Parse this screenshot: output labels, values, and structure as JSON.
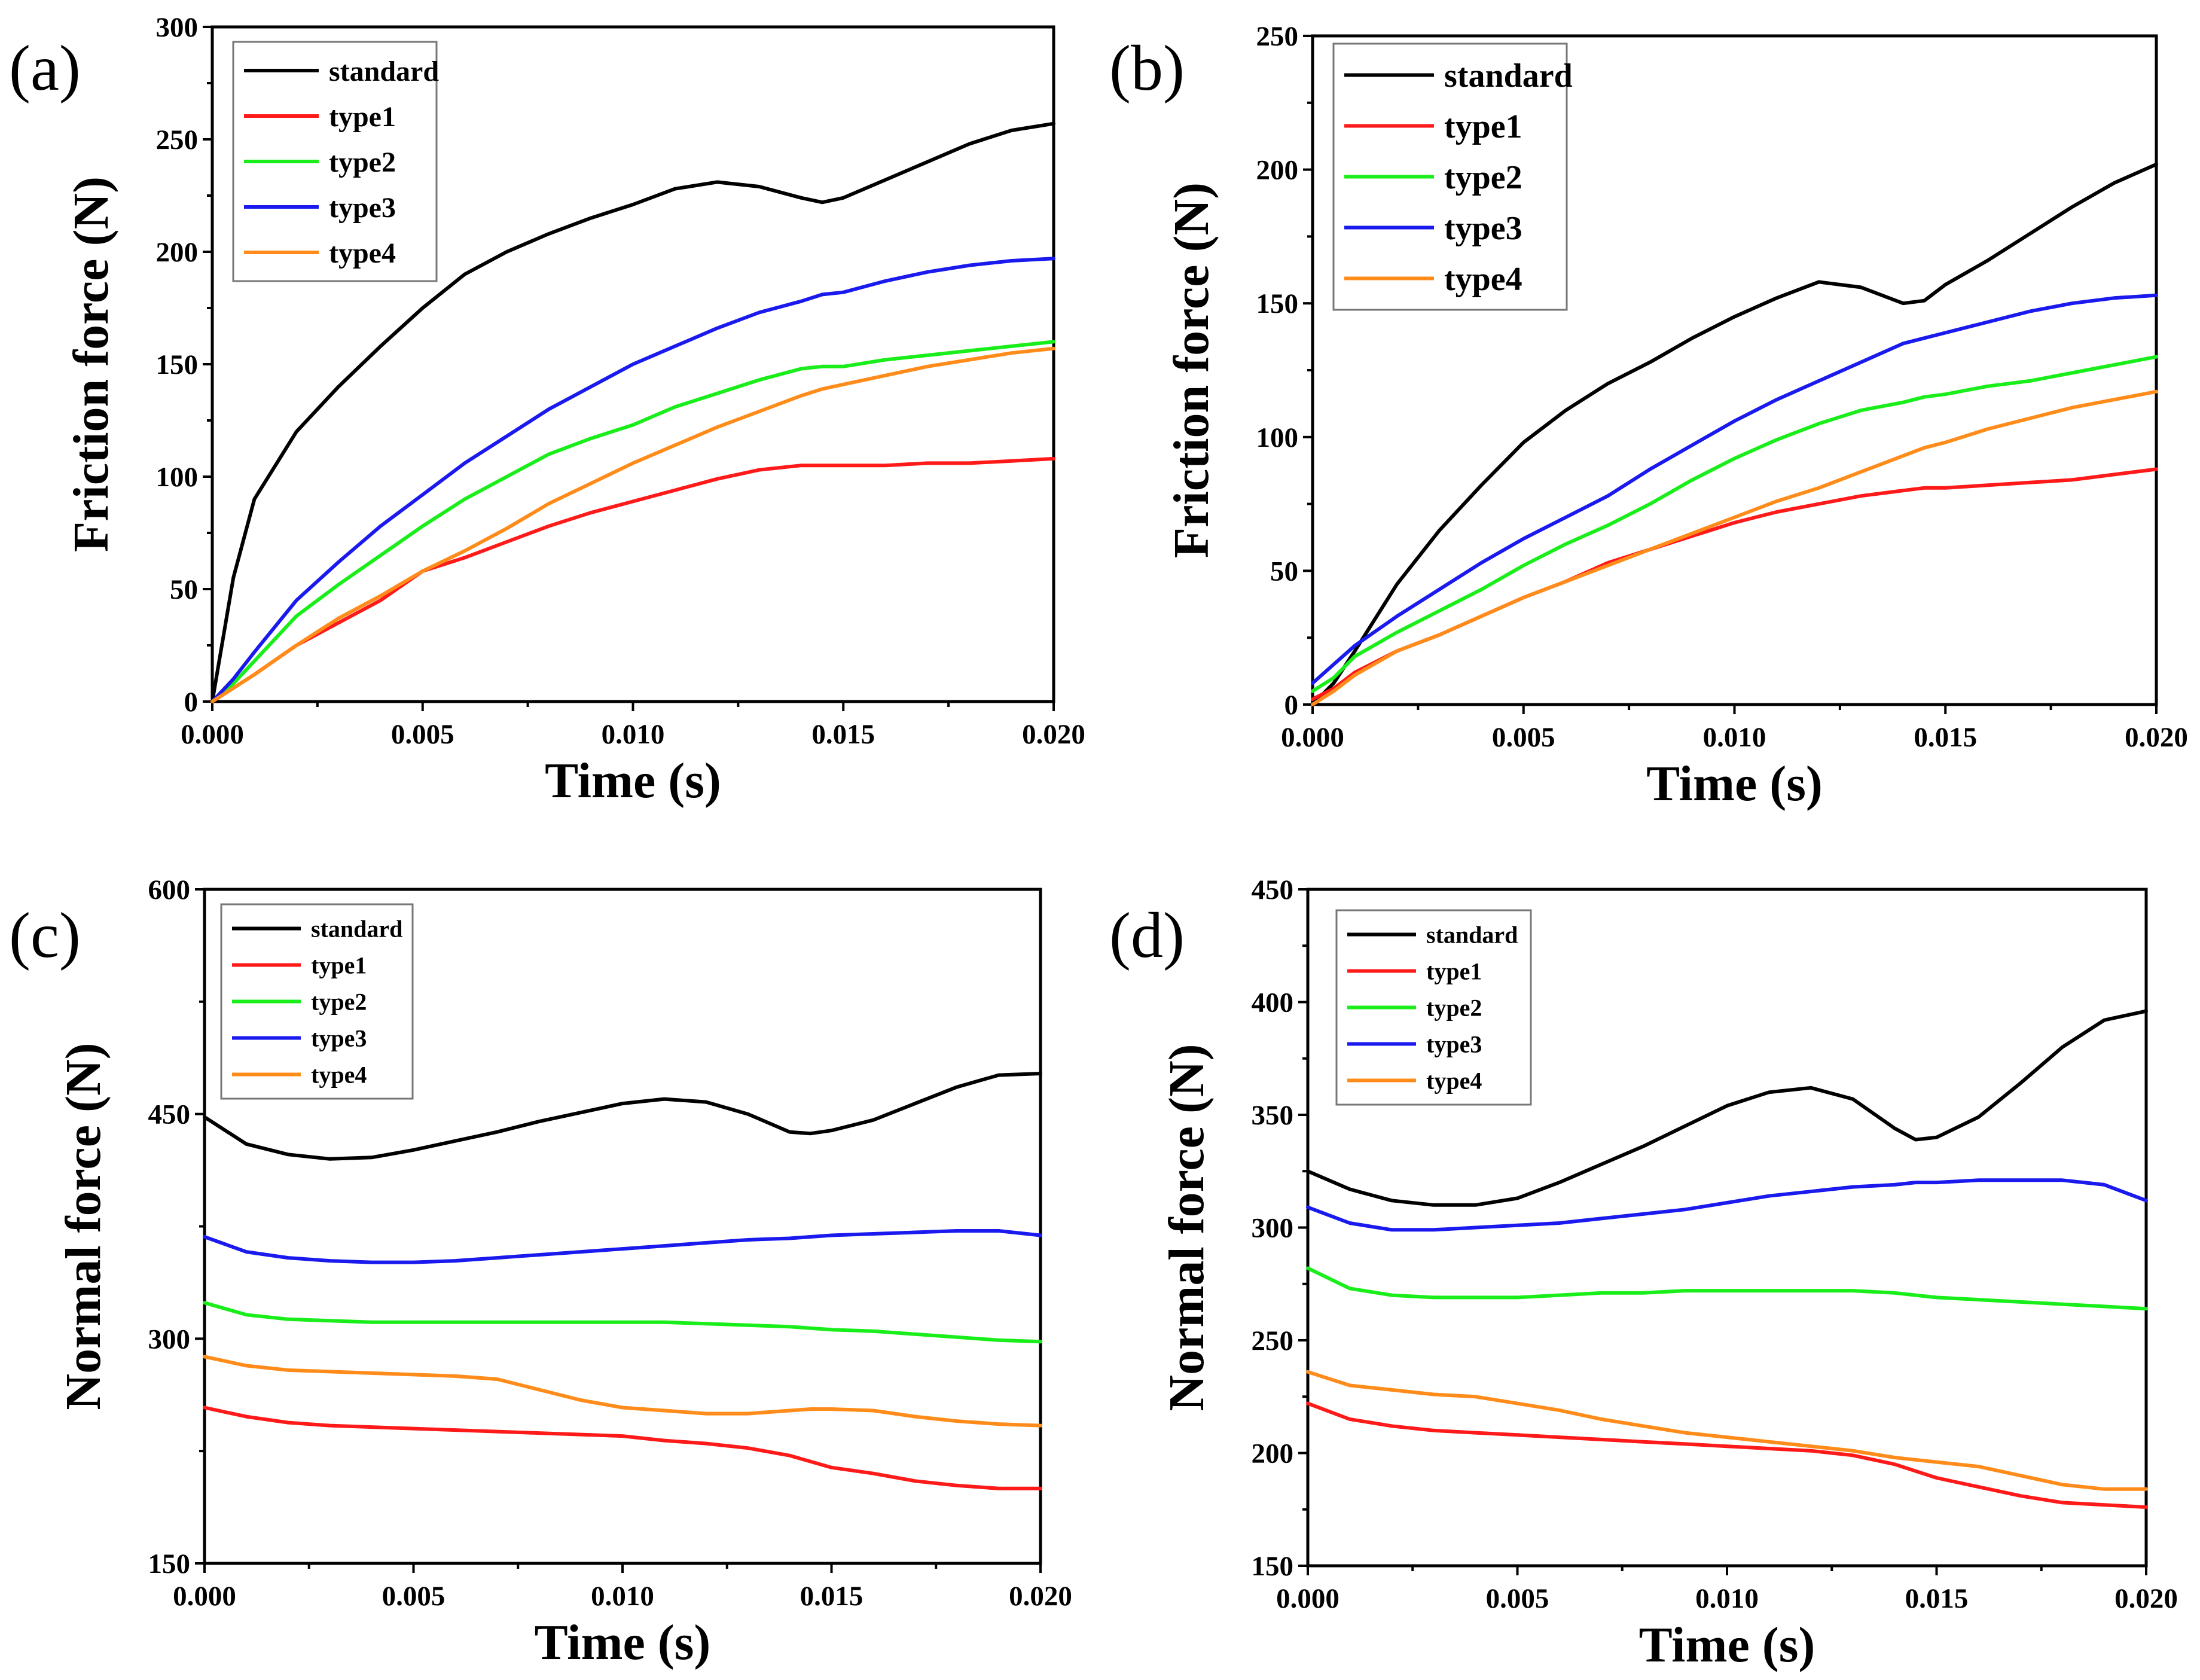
{
  "figure": {
    "panels": [
      "a",
      "b",
      "c",
      "d"
    ]
  },
  "chart_data": [
    {
      "id": "a",
      "label": "(a)",
      "type": "line",
      "xlabel": "Time (s)",
      "ylabel": "Friction force (N)",
      "xlim": [
        0,
        0.02
      ],
      "ylim": [
        0,
        300
      ],
      "xticks": [
        "0.000",
        "0.005",
        "0.010",
        "0.015",
        "0.020"
      ],
      "yticks": [
        0,
        50,
        100,
        150,
        200,
        250,
        300
      ],
      "x": [
        0,
        0.0005,
        0.001,
        0.002,
        0.003,
        0.004,
        0.005,
        0.006,
        0.007,
        0.008,
        0.009,
        0.01,
        0.011,
        0.012,
        0.013,
        0.014,
        0.0145,
        0.015,
        0.016,
        0.017,
        0.018,
        0.019,
        0.02
      ],
      "series": [
        {
          "name": "standard",
          "color": "#000000",
          "values": [
            0,
            55,
            90,
            120,
            140,
            158,
            175,
            190,
            200,
            208,
            215,
            221,
            228,
            231,
            229,
            224,
            222,
            224,
            232,
            240,
            248,
            254,
            257
          ]
        },
        {
          "name": "type1",
          "color": "#ff1a1a",
          "values": [
            0,
            6,
            12,
            25,
            35,
            45,
            58,
            64,
            71,
            78,
            84,
            89,
            94,
            99,
            103,
            105,
            105,
            105,
            105,
            106,
            106,
            107,
            108
          ]
        },
        {
          "name": "type2",
          "color": "#1aee1a",
          "values": [
            0,
            8,
            18,
            38,
            52,
            65,
            78,
            90,
            100,
            110,
            117,
            123,
            131,
            137,
            143,
            148,
            149,
            149,
            152,
            154,
            156,
            158,
            160
          ]
        },
        {
          "name": "type3",
          "color": "#1a1aee",
          "values": [
            0,
            10,
            22,
            45,
            62,
            78,
            92,
            106,
            118,
            130,
            140,
            150,
            158,
            166,
            173,
            178,
            181,
            182,
            187,
            191,
            194,
            196,
            197
          ]
        },
        {
          "name": "type4",
          "color": "#ff8c1a",
          "values": [
            0,
            6,
            12,
            25,
            37,
            47,
            58,
            67,
            77,
            88,
            97,
            106,
            114,
            122,
            129,
            136,
            139,
            141,
            145,
            149,
            152,
            155,
            157
          ]
        }
      ]
    },
    {
      "id": "b",
      "label": "(b)",
      "type": "line",
      "xlabel": "Time (s)",
      "ylabel": "Friction force (N)",
      "xlim": [
        0,
        0.02
      ],
      "ylim": [
        0,
        250
      ],
      "xticks": [
        "0.000",
        "0.005",
        "0.010",
        "0.015",
        "0.020"
      ],
      "yticks": [
        0,
        50,
        100,
        150,
        200,
        250
      ],
      "x": [
        0,
        0.0005,
        0.001,
        0.002,
        0.003,
        0.004,
        0.005,
        0.006,
        0.007,
        0.008,
        0.009,
        0.01,
        0.011,
        0.012,
        0.013,
        0.014,
        0.0145,
        0.015,
        0.016,
        0.017,
        0.018,
        0.019,
        0.02
      ],
      "series": [
        {
          "name": "standard",
          "color": "#000000",
          "values": [
            0,
            8,
            20,
            45,
            65,
            82,
            98,
            110,
            120,
            128,
            137,
            145,
            152,
            158,
            156,
            150,
            151,
            157,
            166,
            176,
            186,
            195,
            202
          ]
        },
        {
          "name": "type1",
          "color": "#ff1a1a",
          "values": [
            2,
            6,
            12,
            20,
            26,
            33,
            40,
            46,
            53,
            58,
            63,
            68,
            72,
            75,
            78,
            80,
            81,
            81,
            82,
            83,
            84,
            86,
            88
          ]
        },
        {
          "name": "type2",
          "color": "#1aee1a",
          "values": [
            5,
            10,
            18,
            27,
            35,
            43,
            52,
            60,
            67,
            75,
            84,
            92,
            99,
            105,
            110,
            113,
            115,
            116,
            119,
            121,
            124,
            127,
            130
          ]
        },
        {
          "name": "type3",
          "color": "#1a1aee",
          "values": [
            8,
            15,
            22,
            33,
            43,
            53,
            62,
            70,
            78,
            88,
            97,
            106,
            114,
            121,
            128,
            135,
            137,
            139,
            143,
            147,
            150,
            152,
            153
          ]
        },
        {
          "name": "type4",
          "color": "#ff8c1a",
          "values": [
            0,
            5,
            11,
            20,
            26,
            33,
            40,
            46,
            52,
            58,
            64,
            70,
            76,
            81,
            87,
            93,
            96,
            98,
            103,
            107,
            111,
            114,
            117
          ]
        }
      ]
    },
    {
      "id": "c",
      "label": "(c)",
      "type": "line",
      "xlabel": "Time (s)",
      "ylabel": "Normal force (N)",
      "xlim": [
        0,
        0.02
      ],
      "ylim": [
        150,
        600
      ],
      "xticks": [
        "0.000",
        "0.005",
        "0.010",
        "0.015",
        "0.020"
      ],
      "yticks": [
        150,
        300,
        450,
        600
      ],
      "x": [
        0,
        0.001,
        0.002,
        0.003,
        0.004,
        0.005,
        0.006,
        0.007,
        0.008,
        0.009,
        0.01,
        0.011,
        0.012,
        0.013,
        0.014,
        0.0145,
        0.015,
        0.016,
        0.017,
        0.018,
        0.019,
        0.02
      ],
      "series": [
        {
          "name": "standard",
          "color": "#000000",
          "values": [
            448,
            430,
            423,
            420,
            421,
            426,
            432,
            438,
            445,
            451,
            457,
            460,
            458,
            450,
            438,
            437,
            439,
            446,
            457,
            468,
            476,
            477
          ]
        },
        {
          "name": "type1",
          "color": "#ff1a1a",
          "values": [
            254,
            248,
            244,
            242,
            241,
            240,
            239,
            238,
            237,
            236,
            235,
            232,
            230,
            227,
            222,
            218,
            214,
            210,
            205,
            202,
            200,
            200
          ]
        },
        {
          "name": "type2",
          "color": "#1aee1a",
          "values": [
            324,
            316,
            313,
            312,
            311,
            311,
            311,
            311,
            311,
            311,
            311,
            311,
            310,
            309,
            308,
            307,
            306,
            305,
            303,
            301,
            299,
            298
          ]
        },
        {
          "name": "type3",
          "color": "#1a1aee",
          "values": [
            368,
            358,
            354,
            352,
            351,
            351,
            352,
            354,
            356,
            358,
            360,
            362,
            364,
            366,
            367,
            368,
            369,
            370,
            371,
            372,
            372,
            369
          ]
        },
        {
          "name": "type4",
          "color": "#ff8c1a",
          "values": [
            288,
            282,
            279,
            278,
            277,
            276,
            275,
            273,
            266,
            259,
            254,
            252,
            250,
            250,
            252,
            253,
            253,
            252,
            248,
            245,
            243,
            242
          ]
        }
      ]
    },
    {
      "id": "d",
      "label": "(d)",
      "type": "line",
      "xlabel": "Time (s)",
      "ylabel": "Normal force (N)",
      "xlim": [
        0,
        0.02
      ],
      "ylim": [
        150,
        450
      ],
      "xticks": [
        "0.000",
        "0.005",
        "0.010",
        "0.015",
        "0.020"
      ],
      "yticks": [
        150,
        200,
        250,
        300,
        350,
        400,
        450
      ],
      "x": [
        0,
        0.001,
        0.002,
        0.003,
        0.004,
        0.005,
        0.006,
        0.007,
        0.008,
        0.009,
        0.01,
        0.011,
        0.012,
        0.013,
        0.014,
        0.0145,
        0.015,
        0.016,
        0.017,
        0.018,
        0.019,
        0.02
      ],
      "series": [
        {
          "name": "standard",
          "color": "#000000",
          "values": [
            325,
            317,
            312,
            310,
            310,
            313,
            320,
            328,
            336,
            345,
            354,
            360,
            362,
            357,
            344,
            339,
            340,
            349,
            364,
            380,
            392,
            396
          ]
        },
        {
          "name": "type1",
          "color": "#ff1a1a",
          "values": [
            222,
            215,
            212,
            210,
            209,
            208,
            207,
            206,
            205,
            204,
            203,
            202,
            201,
            199,
            195,
            192,
            189,
            185,
            181,
            178,
            177,
            176
          ]
        },
        {
          "name": "type2",
          "color": "#1aee1a",
          "values": [
            282,
            273,
            270,
            269,
            269,
            269,
            270,
            271,
            271,
            272,
            272,
            272,
            272,
            272,
            271,
            270,
            269,
            268,
            267,
            266,
            265,
            264
          ]
        },
        {
          "name": "type3",
          "color": "#1a1aee",
          "values": [
            309,
            302,
            299,
            299,
            300,
            301,
            302,
            304,
            306,
            308,
            311,
            314,
            316,
            318,
            319,
            320,
            320,
            321,
            321,
            321,
            319,
            312
          ]
        },
        {
          "name": "type4",
          "color": "#ff8c1a",
          "values": [
            236,
            230,
            228,
            226,
            225,
            222,
            219,
            215,
            212,
            209,
            207,
            205,
            203,
            201,
            198,
            197,
            196,
            194,
            190,
            186,
            184,
            184
          ]
        }
      ]
    }
  ]
}
